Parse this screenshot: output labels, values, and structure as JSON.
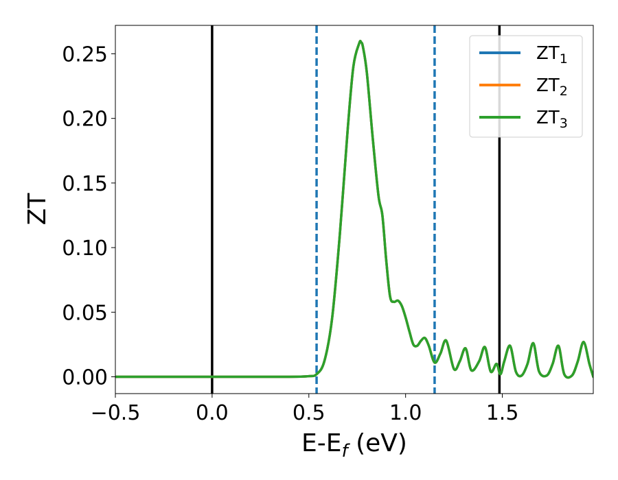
{
  "chart_data": {
    "type": "line",
    "xlabel_main": "E-E",
    "xlabel_sub": "f",
    "xlabel_unit": " (eV)",
    "ylabel": "ZT",
    "xlim": [
      -0.5,
      1.97
    ],
    "ylim": [
      -0.013,
      0.272
    ],
    "x_ticks": [
      -0.5,
      0.0,
      0.5,
      1.0,
      1.5
    ],
    "x_tick_labels": [
      "−0.5",
      "0.0",
      "0.5",
      "1.0",
      "1.5"
    ],
    "y_ticks": [
      0.0,
      0.05,
      0.1,
      0.15,
      0.2,
      0.25
    ],
    "y_tick_labels": [
      "0.00",
      "0.05",
      "0.10",
      "0.15",
      "0.20",
      "0.25"
    ],
    "grid": false,
    "legend_position": "top-right",
    "vlines": [
      {
        "x": 0.0,
        "style": "solid",
        "color": "#000000"
      },
      {
        "x": 1.485,
        "style": "solid",
        "color": "#000000"
      },
      {
        "x": 0.54,
        "style": "dashed",
        "color": "#1f77b4"
      },
      {
        "x": 1.15,
        "style": "dashed",
        "color": "#1f77b4"
      }
    ],
    "series": [
      {
        "name_main": "ZT",
        "name_sub": "1",
        "color": "#1f77b4"
      },
      {
        "name_main": "ZT",
        "name_sub": "2",
        "color": "#ff7f0e"
      },
      {
        "name_main": "ZT",
        "name_sub": "3",
        "color": "#2ca02c"
      }
    ],
    "x": [
      -0.5,
      0.0,
      0.4,
      0.5,
      0.54,
      0.58,
      0.62,
      0.66,
      0.7,
      0.73,
      0.76,
      0.77,
      0.78,
      0.8,
      0.83,
      0.86,
      0.88,
      0.9,
      0.92,
      0.94,
      0.96,
      0.98,
      1.0,
      1.02,
      1.04,
      1.06,
      1.08,
      1.1,
      1.12,
      1.15,
      1.18,
      1.21,
      1.25,
      1.28,
      1.31,
      1.34,
      1.38,
      1.41,
      1.44,
      1.47,
      1.49,
      1.51,
      1.54,
      1.57,
      1.6,
      1.63,
      1.66,
      1.69,
      1.73,
      1.76,
      1.79,
      1.82,
      1.86,
      1.89,
      1.92,
      1.95,
      1.97
    ],
    "y": [
      0.0,
      0.0,
      0.0,
      0.0005,
      0.002,
      0.012,
      0.045,
      0.11,
      0.19,
      0.24,
      0.258,
      0.259,
      0.255,
      0.235,
      0.185,
      0.14,
      0.125,
      0.09,
      0.062,
      0.058,
      0.059,
      0.055,
      0.046,
      0.035,
      0.025,
      0.024,
      0.028,
      0.03,
      0.024,
      0.011,
      0.018,
      0.028,
      0.006,
      0.012,
      0.022,
      0.005,
      0.012,
      0.023,
      0.004,
      0.01,
      0.002,
      0.012,
      0.024,
      0.004,
      0.001,
      0.01,
      0.026,
      0.004,
      0.001,
      0.01,
      0.024,
      0.002,
      0.001,
      0.012,
      0.027,
      0.01,
      0.0
    ]
  }
}
